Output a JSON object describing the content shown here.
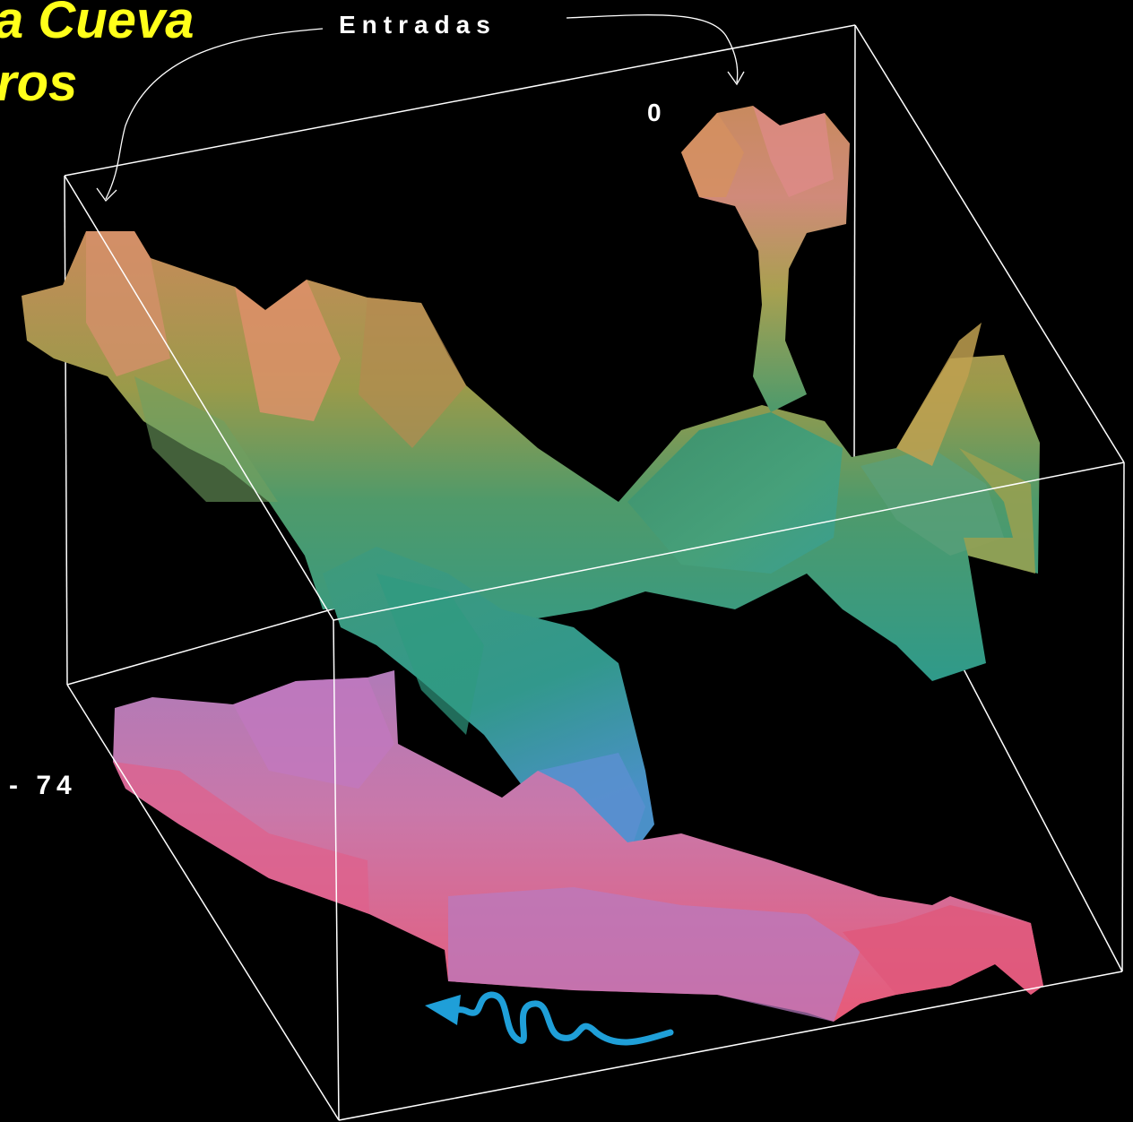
{
  "title": {
    "line1": "a Cueva",
    "line2": "ros"
  },
  "labels": {
    "entrances": "Entradas",
    "depth_top": "0",
    "depth_bottom": "- 74"
  },
  "colors": {
    "background": "#000000",
    "title": "#ffff1a",
    "box": "#ffffff",
    "upper_level": "#3c9e78",
    "upper_level_warm": "#c0905a",
    "lower_level": "#d86a9a",
    "water_flow": "#1f9fd8"
  },
  "icons": {
    "flow": "water-flow-arrow-icon",
    "pointer": "curved-arrow-icon"
  }
}
